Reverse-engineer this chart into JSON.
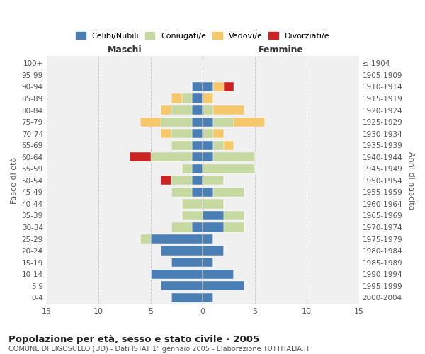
{
  "age_groups": [
    "0-4",
    "5-9",
    "10-14",
    "15-19",
    "20-24",
    "25-29",
    "30-34",
    "35-39",
    "40-44",
    "45-49",
    "50-54",
    "55-59",
    "60-64",
    "65-69",
    "70-74",
    "75-79",
    "80-84",
    "85-89",
    "90-94",
    "95-99",
    "100+"
  ],
  "birth_years": [
    "2000-2004",
    "1995-1999",
    "1990-1994",
    "1985-1989",
    "1980-1984",
    "1975-1979",
    "1970-1974",
    "1965-1969",
    "1960-1964",
    "1955-1959",
    "1950-1954",
    "1945-1949",
    "1940-1944",
    "1935-1939",
    "1930-1934",
    "1925-1929",
    "1920-1924",
    "1915-1919",
    "1910-1914",
    "1905-1909",
    "≤ 1904"
  ],
  "maschi": {
    "celibi": [
      3,
      4,
      5,
      3,
      4,
      5,
      1,
      0,
      0,
      1,
      1,
      1,
      1,
      1,
      1,
      1,
      1,
      1,
      1,
      0,
      0
    ],
    "coniugati": [
      0,
      0,
      0,
      0,
      0,
      1,
      2,
      2,
      2,
      2,
      2,
      1,
      4,
      2,
      2,
      3,
      2,
      1,
      0,
      0,
      0
    ],
    "vedovi": [
      0,
      0,
      0,
      0,
      0,
      0,
      0,
      0,
      0,
      0,
      0,
      0,
      0,
      0,
      1,
      2,
      1,
      1,
      0,
      0,
      0
    ],
    "divorziati": [
      0,
      0,
      0,
      0,
      0,
      0,
      0,
      0,
      0,
      0,
      1,
      0,
      2,
      0,
      0,
      0,
      0,
      0,
      0,
      0,
      0
    ]
  },
  "femmine": {
    "nubili": [
      1,
      4,
      3,
      1,
      2,
      1,
      2,
      2,
      0,
      1,
      0,
      0,
      1,
      1,
      0,
      1,
      0,
      0,
      1,
      0,
      0
    ],
    "coniugate": [
      0,
      0,
      0,
      0,
      0,
      0,
      2,
      2,
      2,
      3,
      2,
      5,
      4,
      1,
      1,
      2,
      1,
      0,
      0,
      0,
      0
    ],
    "vedove": [
      0,
      0,
      0,
      0,
      0,
      0,
      0,
      0,
      0,
      0,
      0,
      0,
      0,
      1,
      1,
      3,
      3,
      1,
      1,
      0,
      0
    ],
    "divorziate": [
      0,
      0,
      0,
      0,
      0,
      0,
      0,
      0,
      0,
      0,
      0,
      0,
      0,
      0,
      0,
      0,
      0,
      0,
      1,
      0,
      0
    ]
  },
  "colors": {
    "celibi_nubili": "#4a7fb5",
    "coniugati": "#c5d9a0",
    "vedovi": "#f5c96b",
    "divorziati": "#cc2222"
  },
  "title": "Popolazione per età, sesso e stato civile - 2005",
  "subtitle": "COMUNE DI LIGOSULLO (UD) - Dati ISTAT 1° gennaio 2005 - Elaborazione TUTTITALIA.IT",
  "xlabel_left": "Maschi",
  "xlabel_right": "Femmine",
  "ylabel_left": "Fasce di età",
  "ylabel_right": "Anni di nascita",
  "xlim": 15,
  "background_color": "#f0f0f0",
  "legend_labels": [
    "Celibi/Nubili",
    "Coniugati/e",
    "Vedovi/e",
    "Divorziati/e"
  ]
}
